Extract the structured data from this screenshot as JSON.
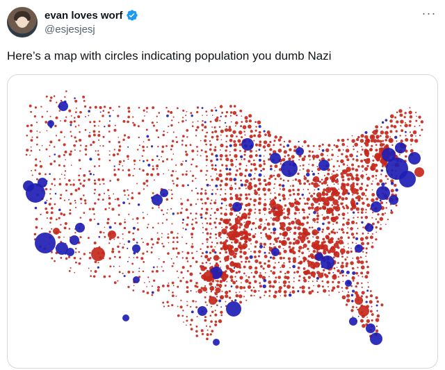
{
  "tweet": {
    "display_name": "evan loves worf",
    "handle": "@esjesjesj",
    "text": "Here’s a map with circles indicating population you dumb Nazi",
    "more_icon": "more-horizontal-icon",
    "verified_icon": "verified-badge-icon"
  },
  "colors": {
    "blue": "#1e1eb4",
    "red": "#c4281c",
    "verified": "#1d9bf0"
  },
  "map": {
    "description_kind": "US county population circle map",
    "marker_colors": [
      "#1e1eb4",
      "#c4281c"
    ]
  }
}
